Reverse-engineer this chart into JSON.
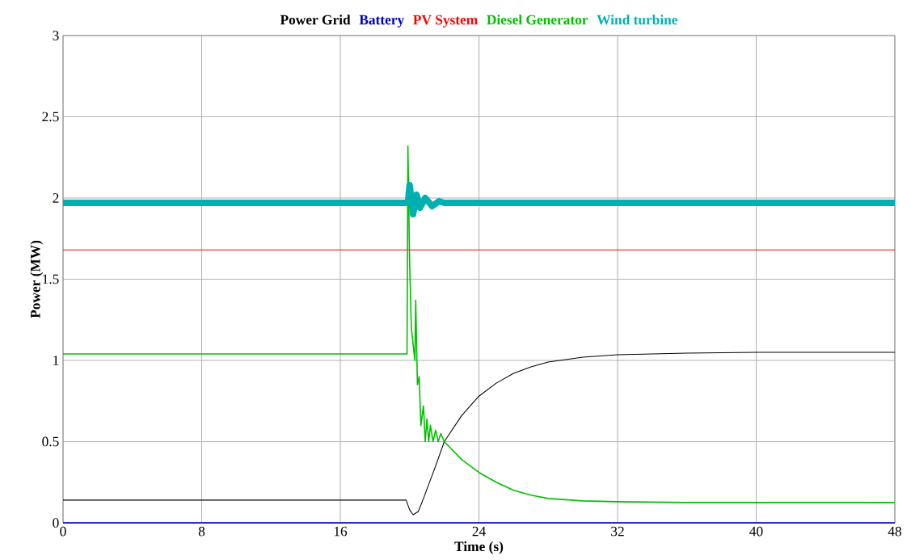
{
  "chart_data": {
    "type": "line",
    "xlabel": "Time (s)",
    "ylabel": "Power (MW)",
    "xlim": [
      0,
      48
    ],
    "ylim": [
      0,
      3
    ],
    "xticks": [
      0,
      8,
      16,
      24,
      32,
      40,
      48
    ],
    "yticks": [
      0,
      0.5,
      1,
      1.5,
      2,
      2.5,
      3
    ],
    "grid": true,
    "marker": "none",
    "line_style": "solid",
    "series": [
      {
        "name": "Power Grid",
        "color": "#000000",
        "x": [
          0,
          19.8,
          20.0,
          20.2,
          20.5,
          20.8,
          21.5,
          22,
          23,
          24,
          25,
          26,
          27,
          28,
          30,
          32,
          36,
          40,
          48
        ],
        "values": [
          0.14,
          0.14,
          0.08,
          0.05,
          0.07,
          0.15,
          0.35,
          0.5,
          0.66,
          0.78,
          0.86,
          0.92,
          0.96,
          0.99,
          1.02,
          1.035,
          1.045,
          1.05,
          1.05
        ]
      },
      {
        "name": "Battery",
        "color": "#0000cc",
        "x": [
          0,
          48
        ],
        "values": [
          0,
          0
        ]
      },
      {
        "name": "PV System",
        "color": "#ff0000",
        "x": [
          0,
          48
        ],
        "values": [
          1.68,
          1.68
        ]
      },
      {
        "name": "Diesel Generator",
        "color": "#00c000",
        "x": [
          0,
          19.8,
          19.85,
          19.9,
          20.0,
          20.1,
          20.3,
          20.35,
          20.45,
          20.55,
          20.65,
          20.8,
          20.9,
          21.0,
          21.1,
          21.2,
          21.35,
          21.5,
          21.65,
          21.8,
          22,
          23,
          24,
          25,
          26,
          27,
          28,
          30,
          32,
          36,
          48
        ],
        "values": [
          1.04,
          1.04,
          1.04,
          2.32,
          1.6,
          1.2,
          1.0,
          1.37,
          0.85,
          0.9,
          0.6,
          0.72,
          0.5,
          0.64,
          0.5,
          0.6,
          0.5,
          0.57,
          0.5,
          0.55,
          0.5,
          0.39,
          0.31,
          0.25,
          0.2,
          0.17,
          0.15,
          0.135,
          0.13,
          0.125,
          0.125
        ]
      },
      {
        "name": "Wind turbine",
        "color": "#00b0b0",
        "x": [
          0,
          19.9,
          20.0,
          20.2,
          20.4,
          20.6,
          20.9,
          21.3,
          21.7,
          22,
          48
        ],
        "values": [
          1.97,
          1.97,
          2.08,
          1.9,
          2.02,
          1.94,
          2.0,
          1.95,
          1.98,
          1.97,
          1.97
        ]
      }
    ]
  }
}
